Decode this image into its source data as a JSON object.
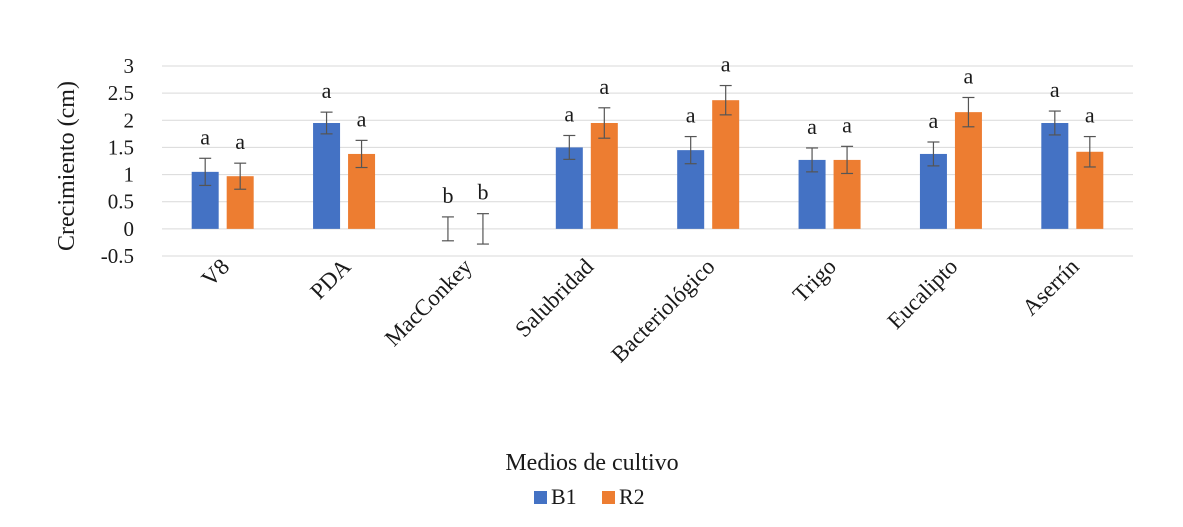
{
  "chart_data": {
    "type": "bar",
    "title": "",
    "xlabel": "Medios de cultivo",
    "ylabel": "Crecimiento (cm)",
    "ylim": [
      -0.5,
      3
    ],
    "yticks": [
      "3",
      "2.5",
      "2",
      "1.5",
      "1",
      "0.5",
      "0",
      "-0.5"
    ],
    "grid": true,
    "legend_position": "bottom-center",
    "categories": [
      "V8",
      "PDA",
      "MacConkey",
      "Salubridad",
      "Bacteriológico",
      "Trigo",
      "Eucalipto",
      "Aserrín"
    ],
    "series": [
      {
        "name": "B1",
        "color": "#4472C4",
        "values": [
          1.05,
          1.95,
          0,
          1.5,
          1.45,
          1.27,
          1.38,
          1.95
        ],
        "errors": [
          0.25,
          0.2,
          0.22,
          0.22,
          0.25,
          0.22,
          0.22,
          0.22
        ],
        "letters": [
          "a",
          "a",
          "b",
          "a",
          "a",
          "a",
          "a",
          "a"
        ]
      },
      {
        "name": "R2",
        "color": "#ED7D31",
        "values": [
          0.97,
          1.38,
          0,
          1.95,
          2.37,
          1.27,
          2.15,
          1.42
        ],
        "errors": [
          0.24,
          0.25,
          0.28,
          0.28,
          0.27,
          0.25,
          0.27,
          0.28
        ],
        "letters": [
          "a",
          "a",
          "b",
          "a",
          "a",
          "a",
          "a",
          "a"
        ]
      }
    ]
  }
}
